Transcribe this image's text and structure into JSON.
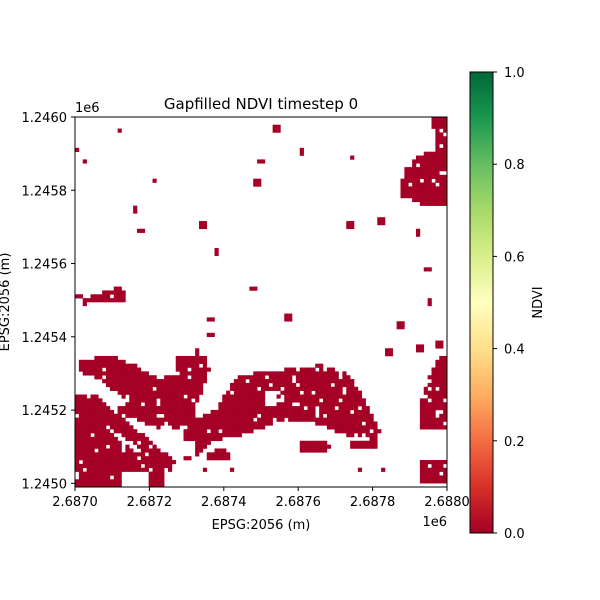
{
  "chart_data": {
    "type": "heatmap",
    "title": "Gapfilled NDVI timestep 0",
    "xlabel": "EPSG:2056 (m)",
    "ylabel": "EPSG:2056 (m)",
    "x_offset_label": "1e6",
    "y_offset_label": "1e6",
    "xlim": [
      2.687,
      2.688
    ],
    "ylim": [
      1.24499,
      1.246
    ],
    "x_ticks": [
      2.687,
      2.6872,
      2.6874,
      2.6876,
      2.6878,
      2.688
    ],
    "x_tick_labels": [
      "2.6870",
      "2.6872",
      "2.6874",
      "2.6876",
      "2.6878",
      "2.6880"
    ],
    "y_ticks": [
      1.245,
      1.2452,
      1.2454,
      1.2456,
      1.2458,
      1.246
    ],
    "y_tick_labels": [
      "1.2450",
      "1.2452",
      "1.2454",
      "1.2456",
      "1.2458",
      "1.2460"
    ],
    "colorbar": {
      "label": "NDVI",
      "colormap": "RdYlGn",
      "range": [
        0,
        1
      ],
      "ticks": [
        0,
        0.2,
        0.4,
        0.6,
        0.8,
        1.0
      ],
      "tick_labels": [
        "0.0",
        "0.2",
        "0.4",
        "0.6",
        "0.8",
        "1.0"
      ]
    },
    "value_shown": 0.0,
    "value_color": "#a50026",
    "background_color": "#ffffff",
    "grid": false
  }
}
